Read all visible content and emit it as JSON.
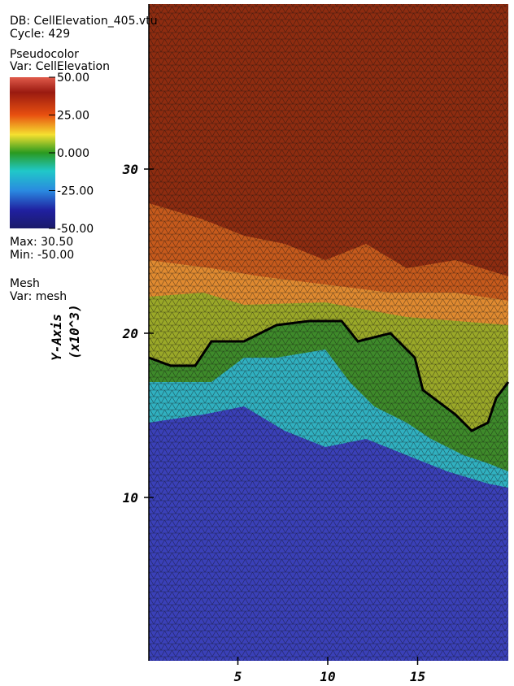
{
  "header": {
    "db": "DB: CellElevation_405.vtu",
    "cycle": "Cycle: 429"
  },
  "legend": {
    "plot": "Pseudocolor",
    "var": "Var: CellElevation",
    "colorbar": {
      "min": -50,
      "max": 50,
      "ticks": [
        {
          "value": 50,
          "label": "50.00"
        },
        {
          "value": 25,
          "label": "25.00"
        },
        {
          "value": 0,
          "label": "0.000"
        },
        {
          "value": -25,
          "label": "-25.00"
        },
        {
          "value": -50,
          "label": "-50.00"
        }
      ]
    },
    "max": "Max:  30.50",
    "min": "Min: -50.00",
    "mesh": "Mesh",
    "mesh_var": "Var: mesh"
  },
  "axes": {
    "y_title": "Y-Axis",
    "y_units": "(x10^3)",
    "yticks": [
      10,
      20,
      30
    ],
    "xticks": [
      5,
      10,
      15
    ]
  }
}
